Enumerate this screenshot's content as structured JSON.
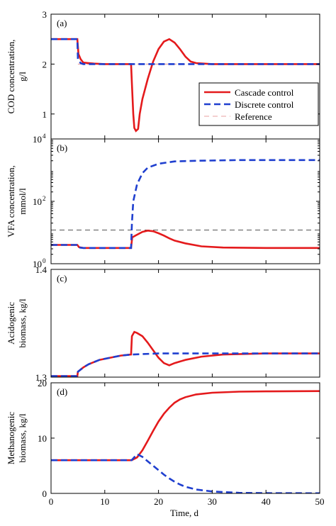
{
  "figure": {
    "xlabel": "Time, d"
  },
  "chart_data": [
    {
      "type": "line",
      "panel_label": "(a)",
      "ylabel_lines": [
        "COD concentration,",
        "g/l"
      ],
      "xlim": [
        0,
        50
      ],
      "ylim": [
        0.5,
        3
      ],
      "yscale": "linear",
      "yticks": [
        1,
        2,
        3
      ],
      "ytick_labels": [
        "1",
        "2",
        "3"
      ],
      "xticks": [
        0,
        10,
        20,
        30,
        40,
        50
      ],
      "xtick_labels": [],
      "legend": {
        "placement": "right",
        "entries": [
          "Cascade control",
          "Discrete control",
          "Reference"
        ]
      },
      "series": [
        {
          "name": "Cascade control",
          "style": "solid",
          "color": "#e41a1c",
          "points": [
            [
              0,
              2.5
            ],
            [
              4.9,
              2.5
            ],
            [
              5.1,
              2.2
            ],
            [
              5.5,
              2.1
            ],
            [
              6,
              2.03
            ],
            [
              8,
              2.01
            ],
            [
              10,
              2.0
            ],
            [
              14.9,
              2.0
            ],
            [
              15.05,
              1.6
            ],
            [
              15.3,
              1.0
            ],
            [
              15.5,
              0.72
            ],
            [
              15.8,
              0.66
            ],
            [
              16.2,
              0.7
            ],
            [
              16.5,
              1.0
            ],
            [
              17,
              1.3
            ],
            [
              18,
              1.7
            ],
            [
              19,
              2.05
            ],
            [
              20,
              2.3
            ],
            [
              21,
              2.45
            ],
            [
              22,
              2.5
            ],
            [
              23,
              2.43
            ],
            [
              24,
              2.3
            ],
            [
              25,
              2.15
            ],
            [
              26,
              2.05
            ],
            [
              27,
              2.02
            ],
            [
              30,
              2.0
            ],
            [
              40,
              2.0
            ],
            [
              50,
              2.0
            ]
          ]
        },
        {
          "name": "Discrete control",
          "style": "dashed",
          "color": "#1f3fcf",
          "points": [
            [
              0,
              2.5
            ],
            [
              4.9,
              2.5
            ],
            [
              5.0,
              2.1
            ],
            [
              5.5,
              2.02
            ],
            [
              6,
              2.0
            ],
            [
              10,
              2.0
            ],
            [
              20,
              2.0
            ],
            [
              30,
              2.0
            ],
            [
              40,
              2.0
            ],
            [
              50,
              2.0
            ]
          ]
        },
        {
          "name": "Reference",
          "style": "dashed-thin",
          "color": "#e8a0a0",
          "points": [
            [
              5,
              2.0
            ],
            [
              50,
              2.0
            ]
          ]
        }
      ]
    },
    {
      "type": "line",
      "panel_label": "(b)",
      "ylabel_lines": [
        "VFA concentration,",
        "mmol/l"
      ],
      "xlim": [
        0,
        50
      ],
      "ylim": [
        1,
        10000
      ],
      "yscale": "log",
      "yticks": [
        1,
        100,
        10000
      ],
      "ytick_labels": [
        "10",
        "10",
        "10"
      ],
      "ytick_exponents": [
        "0",
        "2",
        "4"
      ],
      "xticks": [
        0,
        10,
        20,
        30,
        40,
        50
      ],
      "xtick_labels": [],
      "series": [
        {
          "name": "Cascade control",
          "style": "solid",
          "color": "#e41a1c",
          "points": [
            [
              0,
              4.0
            ],
            [
              4.9,
              4.0
            ],
            [
              5.2,
              3.4
            ],
            [
              6,
              3.2
            ],
            [
              10,
              3.2
            ],
            [
              14.9,
              3.2
            ],
            [
              15.1,
              7.0
            ],
            [
              16,
              8.5
            ],
            [
              17,
              10.5
            ],
            [
              18,
              11.5
            ],
            [
              19,
              11.0
            ],
            [
              20,
              9.5
            ],
            [
              21,
              8.0
            ],
            [
              22,
              6.5
            ],
            [
              23,
              5.5
            ],
            [
              25,
              4.5
            ],
            [
              28,
              3.6
            ],
            [
              32,
              3.3
            ],
            [
              40,
              3.2
            ],
            [
              50,
              3.2
            ]
          ]
        },
        {
          "name": "Discrete control",
          "style": "dashed",
          "color": "#1f3fcf",
          "points": [
            [
              0,
              4.0
            ],
            [
              4.9,
              4.0
            ],
            [
              5.2,
              3.3
            ],
            [
              6,
              3.2
            ],
            [
              10,
              3.2
            ],
            [
              14.9,
              3.2
            ],
            [
              15.05,
              20
            ],
            [
              15.3,
              100
            ],
            [
              16,
              350
            ],
            [
              17,
              800
            ],
            [
              18,
              1200
            ],
            [
              20,
              1600
            ],
            [
              23,
              1900
            ],
            [
              27,
              2000
            ],
            [
              35,
              2100
            ],
            [
              50,
              2100
            ]
          ]
        },
        {
          "name": "Reference",
          "style": "dashed-thin",
          "color": "#555555",
          "points": [
            [
              0,
              12
            ],
            [
              50,
              12
            ]
          ]
        }
      ]
    },
    {
      "type": "line",
      "panel_label": "(c)",
      "ylabel_lines": [
        "Acidogenic",
        "biomass, kg/l"
      ],
      "xlim": [
        0,
        50
      ],
      "ylim": [
        1.3,
        1.4
      ],
      "yscale": "linear",
      "yticks": [
        1.3,
        1.4
      ],
      "ytick_labels": [
        "1.3",
        "1.4"
      ],
      "xticks": [
        0,
        10,
        20,
        30,
        40,
        50
      ],
      "xtick_labels": [],
      "series": [
        {
          "name": "Cascade control",
          "style": "solid",
          "color": "#e41a1c",
          "points": [
            [
              0,
              1.301
            ],
            [
              4.9,
              1.301
            ],
            [
              5.0,
              1.305
            ],
            [
              6,
              1.309
            ],
            [
              7,
              1.312
            ],
            [
              9,
              1.316
            ],
            [
              11,
              1.318
            ],
            [
              13,
              1.32
            ],
            [
              14.9,
              1.321
            ],
            [
              15.05,
              1.338
            ],
            [
              15.5,
              1.342
            ],
            [
              16,
              1.341
            ],
            [
              17,
              1.338
            ],
            [
              18,
              1.332
            ],
            [
              19,
              1.325
            ],
            [
              20,
              1.318
            ],
            [
              21,
              1.313
            ],
            [
              22,
              1.311
            ],
            [
              23,
              1.313
            ],
            [
              25,
              1.316
            ],
            [
              28,
              1.319
            ],
            [
              32,
              1.321
            ],
            [
              40,
              1.322
            ],
            [
              50,
              1.322
            ]
          ]
        },
        {
          "name": "Discrete control",
          "style": "dashed",
          "color": "#1f3fcf",
          "points": [
            [
              0,
              1.301
            ],
            [
              4.9,
              1.301
            ],
            [
              5.0,
              1.305
            ],
            [
              6,
              1.309
            ],
            [
              7,
              1.312
            ],
            [
              9,
              1.316
            ],
            [
              11,
              1.318
            ],
            [
              13,
              1.32
            ],
            [
              15,
              1.321
            ],
            [
              20,
              1.322
            ],
            [
              30,
              1.322
            ],
            [
              40,
              1.322
            ],
            [
              50,
              1.322
            ]
          ]
        }
      ]
    },
    {
      "type": "line",
      "panel_label": "(d)",
      "ylabel_lines": [
        "Methanogenic",
        "biomass, kg/l"
      ],
      "xlim": [
        0,
        50
      ],
      "ylim": [
        0,
        20
      ],
      "yscale": "linear",
      "yticks": [
        0,
        10,
        20
      ],
      "ytick_labels": [
        "0",
        "10",
        "20"
      ],
      "xticks": [
        0,
        10,
        20,
        30,
        40,
        50
      ],
      "xtick_labels": [
        "0",
        "10",
        "20",
        "30",
        "40",
        "50"
      ],
      "series": [
        {
          "name": "Cascade control",
          "style": "solid",
          "color": "#e41a1c",
          "points": [
            [
              0,
              6
            ],
            [
              15,
              6
            ],
            [
              16,
              6.5
            ],
            [
              17,
              7.8
            ],
            [
              18,
              9.5
            ],
            [
              19,
              11.3
            ],
            [
              20,
              13.0
            ],
            [
              21,
              14.4
            ],
            [
              22,
              15.5
            ],
            [
              23,
              16.4
            ],
            [
              24,
              17.0
            ],
            [
              25,
              17.4
            ],
            [
              27,
              17.9
            ],
            [
              30,
              18.2
            ],
            [
              35,
              18.4
            ],
            [
              40,
              18.45
            ],
            [
              50,
              18.5
            ]
          ]
        },
        {
          "name": "Discrete control",
          "style": "dashed",
          "color": "#1f3fcf",
          "points": [
            [
              0,
              6
            ],
            [
              15,
              6
            ],
            [
              16,
              7.1
            ],
            [
              17,
              6.6
            ],
            [
              18,
              5.8
            ],
            [
              19,
              5.0
            ],
            [
              20,
              4.2
            ],
            [
              21,
              3.4
            ],
            [
              22,
              2.7
            ],
            [
              23,
              2.1
            ],
            [
              24,
              1.6
            ],
            [
              25,
              1.2
            ],
            [
              27,
              0.7
            ],
            [
              30,
              0.35
            ],
            [
              35,
              0.1
            ],
            [
              40,
              0.05
            ],
            [
              50,
              0.02
            ]
          ]
        }
      ]
    }
  ]
}
